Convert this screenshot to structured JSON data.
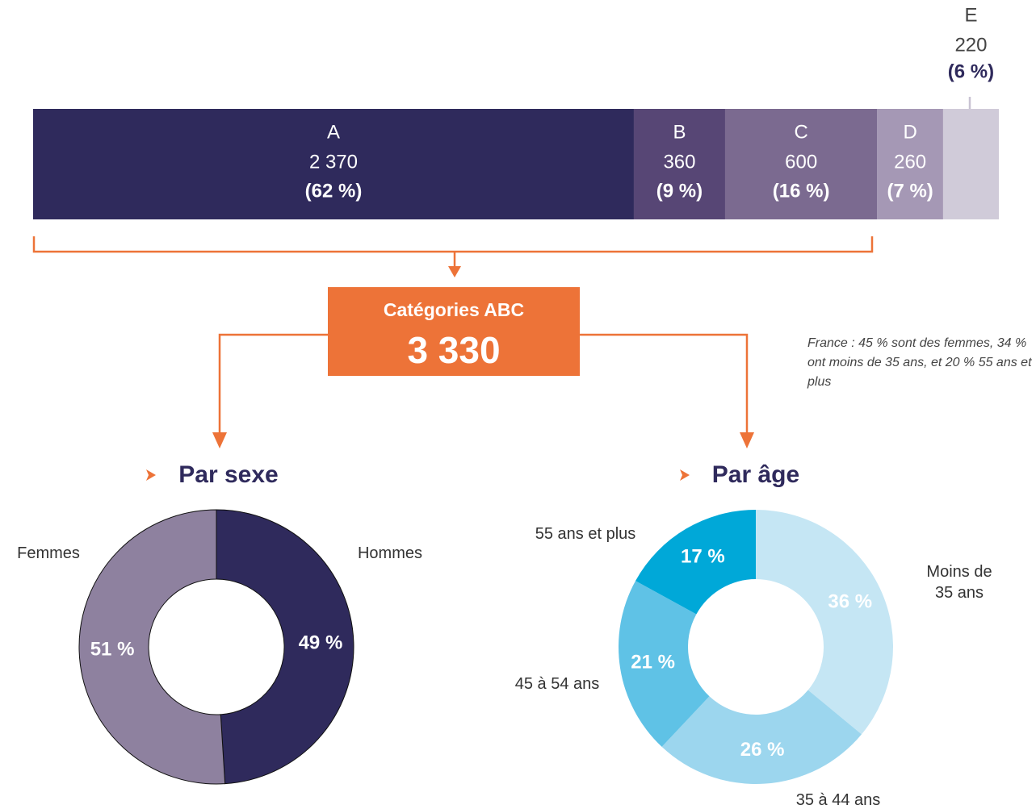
{
  "chart_data": [
    {
      "type": "stacked-bar",
      "categories": [
        "A",
        "B",
        "C",
        "D",
        "E"
      ],
      "values": [
        2370,
        360,
        600,
        260,
        220
      ],
      "value_labels": [
        "2 370",
        "360",
        "600",
        "260",
        "220"
      ],
      "shares": [
        62,
        9,
        16,
        7,
        6
      ],
      "share_labels": [
        "(62 %)",
        "(9 %)",
        "(16 %)",
        "(7 %)",
        "(6 %)"
      ],
      "colors": [
        "#2f2a5c",
        "#574675",
        "#7b6a90",
        "#a598b5",
        "#d0cbd9"
      ]
    },
    {
      "type": "donut",
      "title": "Par sexe",
      "categories": [
        "Hommes",
        "Femmes"
      ],
      "values": [
        49,
        51
      ],
      "value_labels": [
        "49 %",
        "51 %"
      ],
      "colors": [
        "#2f2a5c",
        "#8e819f"
      ]
    },
    {
      "type": "donut",
      "title": "Par âge",
      "categories": [
        "Moins de 35 ans",
        "35 à 44 ans",
        "45 à 54 ans",
        "55 ans et plus"
      ],
      "values": [
        36,
        26,
        21,
        17
      ],
      "value_labels": [
        "36 %",
        "26 %",
        "21 %",
        "17 %"
      ],
      "colors": [
        "#c5e6f4",
        "#9cd6ee",
        "#5fc2e6",
        "#00a8d8"
      ]
    }
  ],
  "summary": {
    "label": "Catégories ABC",
    "total": "3 330"
  },
  "note": "France : 45 % sont des femmes, 34 % ont moins de 35 ans, et 20 % 55 ans et plus"
}
